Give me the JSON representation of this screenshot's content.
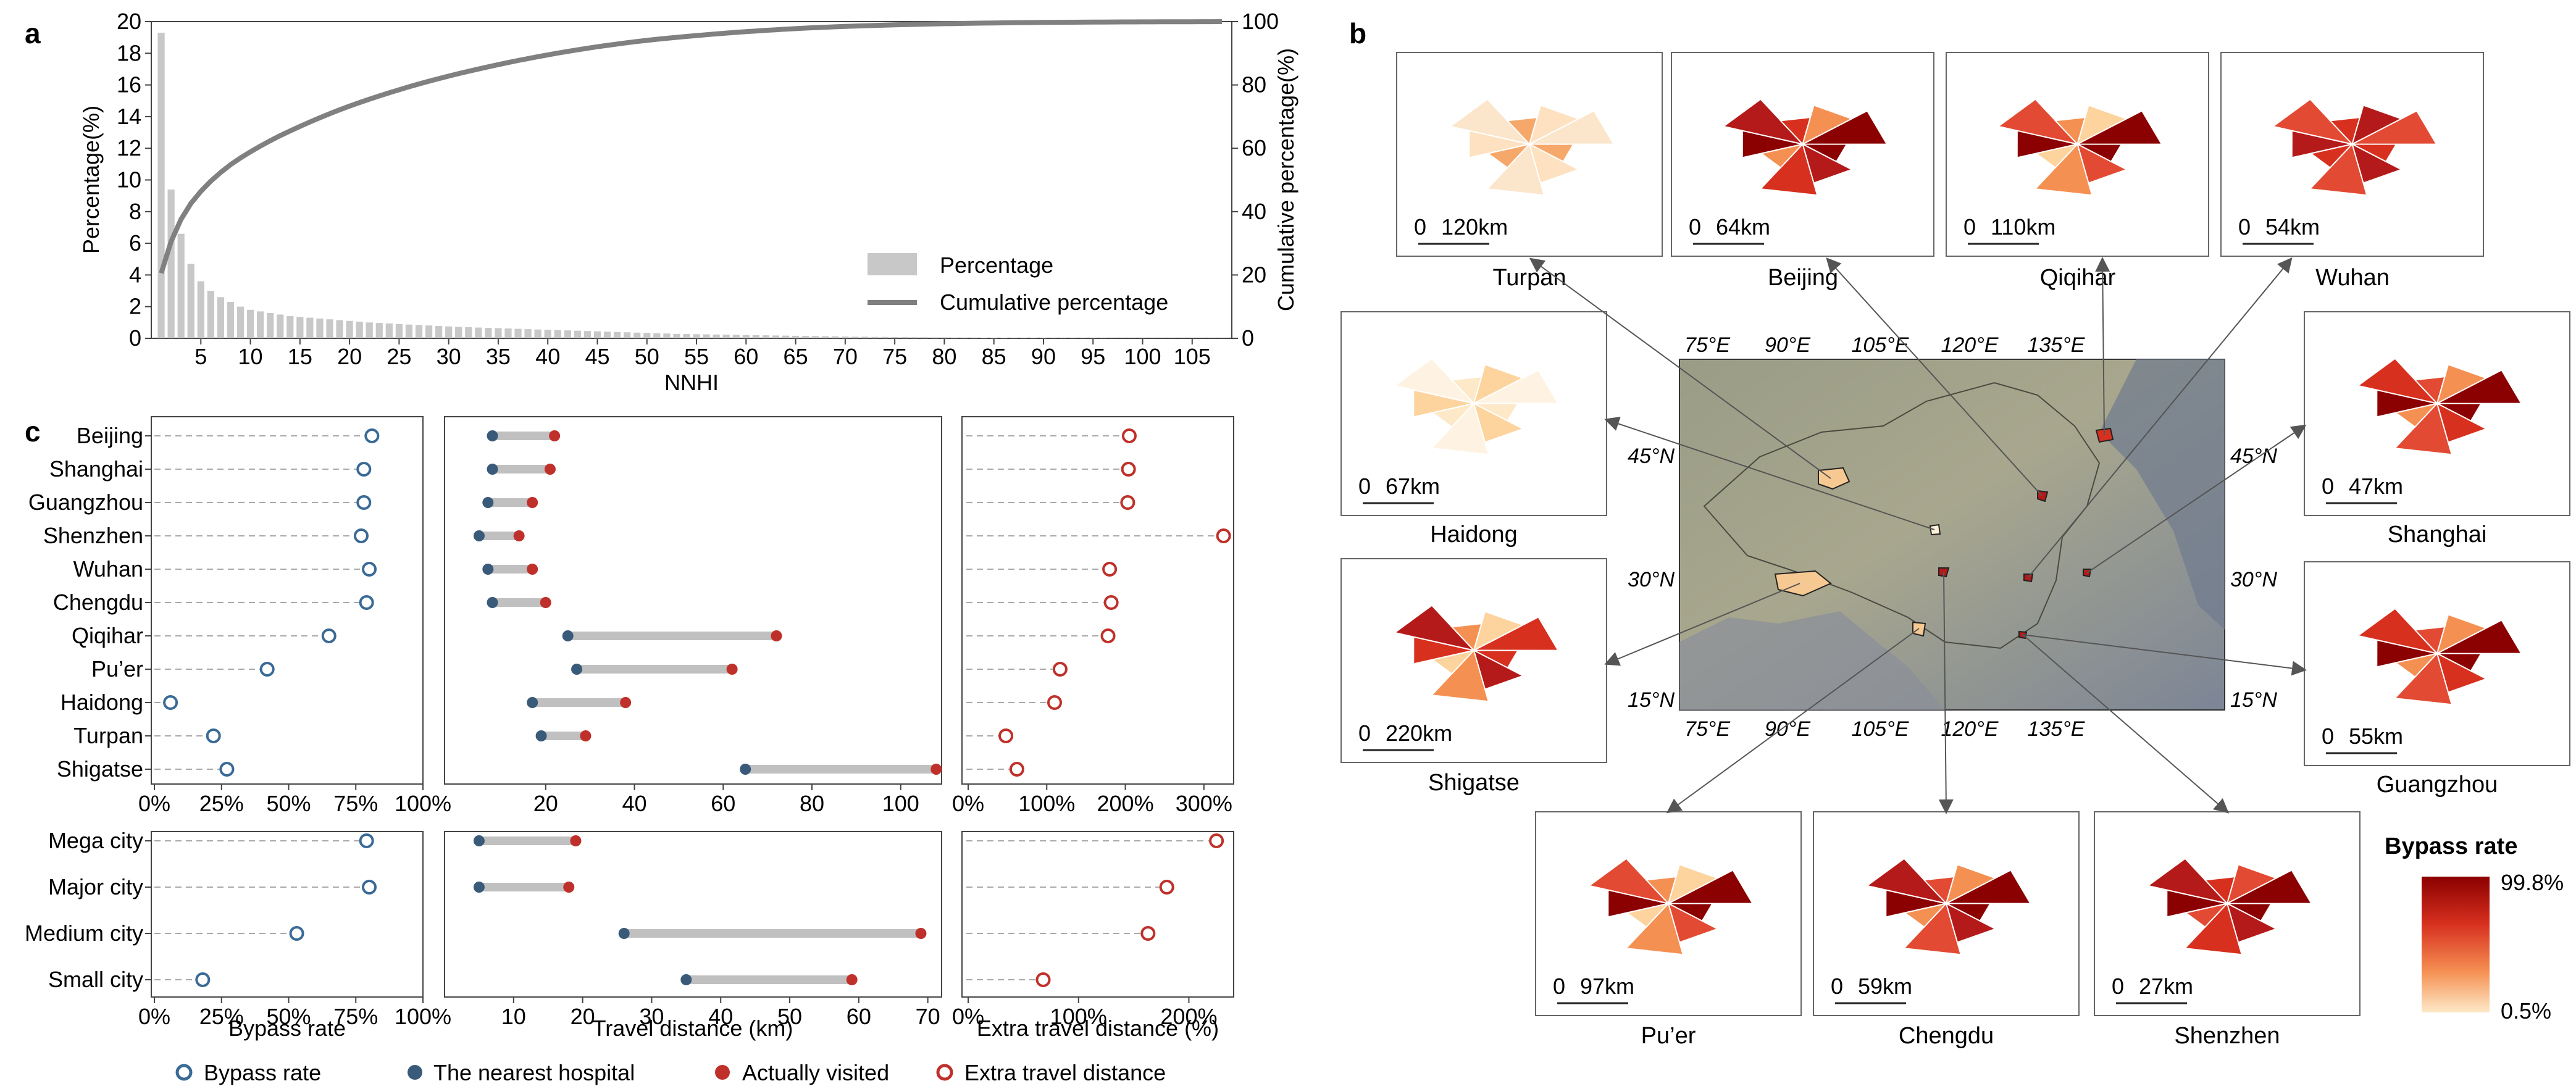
{
  "chart_data": [
    {
      "panel": "a",
      "type": "bar",
      "xlabel": "NNHI",
      "ylabel": "Percentage(%)",
      "y2label": "Cumulative percentage(%)",
      "ylim": [
        0,
        20
      ],
      "y2lim": [
        0,
        100
      ],
      "xticks": [
        "5",
        "10",
        "15",
        "20",
        "25",
        "30",
        "35",
        "40",
        "45",
        "50",
        "55",
        "60",
        "65",
        "70",
        "75",
        "80",
        "85",
        "90",
        "95",
        "100",
        "105"
      ],
      "yticks": [
        "0",
        "2",
        "4",
        "6",
        "8",
        "10",
        "12",
        "14",
        "16",
        "18",
        "20"
      ],
      "y2ticks": [
        "0",
        "20",
        "40",
        "60",
        "80",
        "100"
      ],
      "legend": {
        "bar": "Percentage",
        "line": "Cumulative percentage"
      },
      "bar_values": [
        19.3,
        9.4,
        6.6,
        4.7,
        3.6,
        3.0,
        2.6,
        2.3,
        2.0,
        1.8,
        1.7,
        1.6,
        1.5,
        1.4,
        1.35,
        1.3,
        1.25,
        1.2,
        1.15,
        1.1,
        1.05,
        1.0,
        0.97,
        0.94,
        0.9,
        0.87,
        0.84,
        0.81,
        0.78,
        0.75,
        0.72,
        0.7,
        0.68,
        0.66,
        0.64,
        0.62,
        0.6,
        0.58,
        0.56,
        0.54,
        0.52,
        0.5,
        0.48,
        0.46,
        0.44,
        0.42,
        0.4,
        0.38,
        0.36,
        0.34,
        0.32,
        0.3,
        0.28,
        0.27,
        0.26,
        0.25,
        0.24,
        0.23,
        0.22,
        0.21,
        0.2,
        0.19,
        0.18,
        0.17,
        0.16,
        0.15,
        0.14,
        0.13,
        0.12,
        0.11,
        0.1,
        0.1,
        0.09,
        0.09,
        0.08,
        0.08,
        0.07,
        0.07,
        0.06,
        0.06,
        0.05,
        0.05,
        0.05,
        0.04,
        0.04,
        0.04,
        0.03,
        0.03,
        0.03,
        0.03,
        0.02,
        0.02,
        0.02,
        0.02,
        0.02,
        0.02,
        0.01,
        0.01,
        0.01,
        0.01,
        0.01,
        0.01,
        0.01,
        0.01,
        0.01,
        0.01,
        0.01,
        0.01
      ]
    },
    {
      "panel": "c",
      "type": "dot",
      "cities": [
        "Beijing",
        "Shanghai",
        "Guangzhou",
        "Shenzhen",
        "Wuhan",
        "Chengdu",
        "Qiqihar",
        "Pu’er",
        "Haidong",
        "Turpan",
        "Shigatse"
      ],
      "bypass_rate": [
        81,
        78,
        78,
        77,
        80,
        79,
        65,
        42,
        6,
        22,
        27
      ],
      "nearest_km": [
        8,
        8,
        7,
        5,
        7,
        8,
        25,
        27,
        17,
        19,
        65
      ],
      "visited_km": [
        22,
        21,
        17,
        14,
        17,
        20,
        72,
        62,
        38,
        29,
        108
      ],
      "extra_pct": [
        205,
        204,
        203,
        325,
        180,
        182,
        178,
        117,
        110,
        48,
        62
      ],
      "city_types": [
        "Mega city",
        "Major city",
        "Medium city",
        "Small city"
      ],
      "type_bypass_rate": [
        79,
        80,
        53,
        18
      ],
      "type_nearest_km": [
        5,
        5,
        26,
        35
      ],
      "type_visited_km": [
        19,
        18,
        69,
        59
      ],
      "type_extra_pct": [
        225,
        180,
        163,
        68
      ],
      "xlabels": [
        "Bypass rate",
        "Travel distance (km)",
        "Extra travel distance (%)"
      ],
      "xticks_rate": [
        "0%",
        "25%",
        "50%",
        "75%",
        "100%"
      ],
      "xticks_dist_top": [
        "20",
        "40",
        "60",
        "80",
        "100"
      ],
      "xticks_dist_bottom": [
        "10",
        "20",
        "30",
        "40",
        "50",
        "60",
        "70"
      ],
      "xticks_extra_top": [
        "0%",
        "100%",
        "200%",
        "300%"
      ],
      "xticks_extra_bottom": [
        "0%",
        "100%",
        "200%"
      ],
      "legend": [
        "Bypass rate",
        "The nearest hospital",
        "Actually visited",
        "Extra travel distance"
      ]
    }
  ],
  "labels": {
    "a": "a",
    "b": "b",
    "c": "c"
  },
  "map": {
    "lon_labels": [
      "75°E",
      "90°E",
      "105°E",
      "120°E",
      "135°E"
    ],
    "lat_labels": [
      "45°N",
      "30°N",
      "15°N"
    ],
    "insets": [
      {
        "name": "Turpan",
        "scale": "120km"
      },
      {
        "name": "Beijing",
        "scale": "64km"
      },
      {
        "name": "Qiqihar",
        "scale": "110km"
      },
      {
        "name": "Wuhan",
        "scale": "54km"
      },
      {
        "name": "Haidong",
        "scale": "67km"
      },
      {
        "name": "Shanghai",
        "scale": "47km"
      },
      {
        "name": "Shigatse",
        "scale": "220km"
      },
      {
        "name": "Guangzhou",
        "scale": "55km"
      },
      {
        "name": "Pu’er",
        "scale": "97km"
      },
      {
        "name": "Chengdu",
        "scale": "59km"
      },
      {
        "name": "Shenzhen",
        "scale": "27km"
      }
    ],
    "scale_zero": "0",
    "colorbar": {
      "title": "Bypass rate",
      "max": "99.8%",
      "min": "0.5%",
      "high_color": "#8b0000",
      "low_color": "#fde9c8"
    }
  }
}
